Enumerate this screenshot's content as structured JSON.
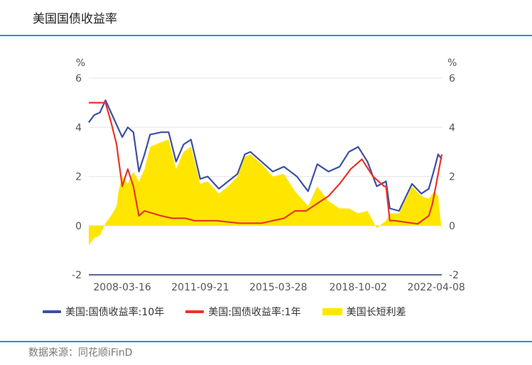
{
  "header": {
    "title": "美国国债收益率"
  },
  "footer": {
    "source": "数据来源：同花顺iFinD"
  },
  "colors": {
    "rule": "#2b8fd6",
    "ten_year": "#3d4fa3",
    "one_year": "#e8342a",
    "spread": "#ffe600"
  },
  "chart_data": {
    "type": "line",
    "x_ticks": [
      "2008-03-16",
      "2011-09-21",
      "2015-03-28",
      "2018-10-02",
      "2022-04-08"
    ],
    "y_unit_left": "%",
    "y_unit_right": "%",
    "y_ticks": [
      6,
      4,
      2,
      0,
      -2
    ],
    "ylim": [
      -2,
      6
    ],
    "x_range": [
      "2006-09",
      "2022-07"
    ],
    "legend_position": "bottom",
    "series": [
      {
        "name": "美国:国债收益率:10年",
        "kind": "line",
        "color": "#3d4fa3",
        "x": [
          "2006-09",
          "2006-12",
          "2007-03",
          "2007-06",
          "2007-09",
          "2007-12",
          "2008-03",
          "2008-06",
          "2008-09",
          "2008-12",
          "2009-03",
          "2009-06",
          "2009-12",
          "2010-04",
          "2010-08",
          "2010-12",
          "2011-04",
          "2011-09",
          "2012-01",
          "2012-07",
          "2012-12",
          "2013-05",
          "2013-09",
          "2013-12",
          "2014-06",
          "2014-12",
          "2015-06",
          "2016-01",
          "2016-07",
          "2016-12",
          "2017-06",
          "2017-12",
          "2018-05",
          "2018-10",
          "2019-03",
          "2019-08",
          "2020-01",
          "2020-03",
          "2020-08",
          "2021-03",
          "2021-08",
          "2021-12",
          "2022-03",
          "2022-05",
          "2022-07"
        ],
        "values": [
          4.2,
          4.5,
          4.6,
          5.1,
          4.6,
          4.1,
          3.6,
          4.0,
          3.8,
          2.2,
          2.9,
          3.7,
          3.8,
          3.8,
          2.6,
          3.3,
          3.5,
          1.9,
          2.0,
          1.5,
          1.8,
          2.1,
          2.9,
          3.0,
          2.6,
          2.2,
          2.4,
          2.0,
          1.4,
          2.5,
          2.2,
          2.4,
          3.0,
          3.2,
          2.6,
          1.6,
          1.8,
          0.7,
          0.6,
          1.7,
          1.3,
          1.5,
          2.3,
          2.9,
          2.7
        ]
      },
      {
        "name": "美国:国债收益率:1年",
        "kind": "line",
        "color": "#e8342a",
        "x": [
          "2006-09",
          "2006-12",
          "2007-03",
          "2007-06",
          "2007-09",
          "2007-12",
          "2008-01",
          "2008-03",
          "2008-06",
          "2008-09",
          "2008-12",
          "2009-03",
          "2009-12",
          "2010-06",
          "2011-01",
          "2011-06",
          "2012-06",
          "2013-06",
          "2014-06",
          "2014-12",
          "2015-06",
          "2015-12",
          "2016-06",
          "2016-12",
          "2017-06",
          "2017-12",
          "2018-06",
          "2018-12",
          "2019-06",
          "2019-12",
          "2020-01",
          "2020-03",
          "2020-06",
          "2021-06",
          "2021-12",
          "2022-02",
          "2022-04",
          "2022-07"
        ],
        "values": [
          5.0,
          5.0,
          5.0,
          5.0,
          4.2,
          3.3,
          2.7,
          1.6,
          2.3,
          1.6,
          0.4,
          0.6,
          0.4,
          0.3,
          0.3,
          0.2,
          0.2,
          0.1,
          0.1,
          0.2,
          0.3,
          0.6,
          0.6,
          0.9,
          1.2,
          1.7,
          2.3,
          2.7,
          2.0,
          1.6,
          1.6,
          0.2,
          0.2,
          0.07,
          0.4,
          0.9,
          1.7,
          2.9
        ]
      },
      {
        "name": "美国长短利差",
        "kind": "area",
        "color": "#ffe600",
        "x": [
          "2006-09",
          "2006-12",
          "2007-03",
          "2007-06",
          "2007-09",
          "2007-12",
          "2008-01",
          "2008-03",
          "2008-06",
          "2008-09",
          "2008-12",
          "2009-03",
          "2009-06",
          "2009-12",
          "2010-04",
          "2010-08",
          "2010-12",
          "2011-04",
          "2011-09",
          "2012-01",
          "2012-07",
          "2012-12",
          "2013-05",
          "2013-09",
          "2013-12",
          "2014-06",
          "2014-12",
          "2015-06",
          "2015-12",
          "2016-07",
          "2016-12",
          "2017-06",
          "2017-12",
          "2018-05",
          "2018-10",
          "2019-03",
          "2019-08",
          "2020-01",
          "2020-03",
          "2020-08",
          "2021-03",
          "2021-08",
          "2021-12",
          "2022-03",
          "2022-05",
          "2022-07"
        ],
        "values": [
          -0.8,
          -0.5,
          -0.4,
          0.1,
          0.4,
          0.8,
          1.4,
          2.0,
          1.7,
          2.2,
          1.8,
          2.3,
          3.2,
          3.4,
          3.5,
          2.3,
          3.0,
          3.2,
          1.7,
          1.8,
          1.3,
          1.6,
          2.0,
          2.8,
          2.9,
          2.5,
          2.0,
          2.1,
          1.4,
          0.8,
          1.6,
          1.0,
          0.7,
          0.7,
          0.5,
          0.6,
          -0.1,
          0.2,
          0.5,
          0.5,
          1.6,
          1.2,
          1.1,
          1.4,
          1.2,
          -0.2
        ]
      }
    ]
  }
}
